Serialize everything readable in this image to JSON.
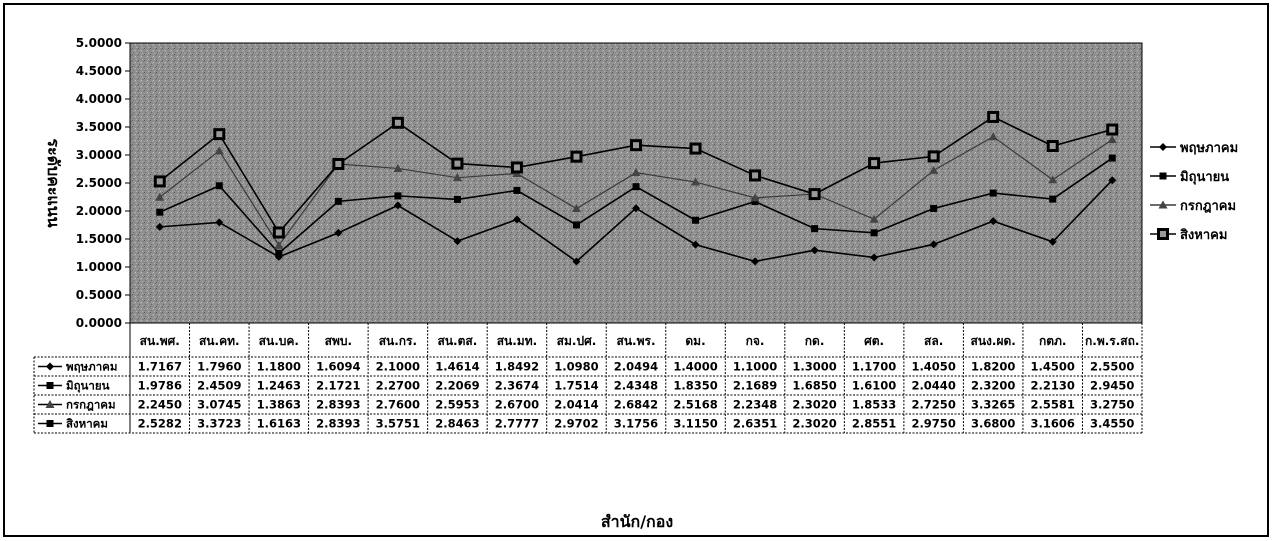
{
  "chart_data": {
    "type": "line",
    "title": "",
    "ylabel": "ระดับคะแนน",
    "xlabel": "สำนัก/กอง",
    "ylim": [
      0,
      5
    ],
    "ytick_step": 0.5,
    "ytick_labels": [
      "0.0000",
      "0.5000",
      "1.0000",
      "1.5000",
      "2.0000",
      "2.5000",
      "3.0000",
      "3.5000",
      "4.0000",
      "4.5000",
      "5.0000"
    ],
    "grid": false,
    "legend_position": "right",
    "categories": [
      "สน.พศ.",
      "สน.คท.",
      "สน.บค.",
      "สพบ.",
      "สน.กร.",
      "สน.ตส.",
      "สน.มท.",
      "สม.ปศ.",
      "สน.พร.",
      "ดม.",
      "กจ.",
      "กด.",
      "ศต.",
      "สล.",
      "สนง.ผด.",
      "กตภ.",
      "ก.พ.ร.สถ."
    ],
    "value_labels": {
      "may": [
        "1.7167",
        "1.7960",
        "1.1800",
        "1.6094",
        "2.1000",
        "1.4614",
        "1.8492",
        "1.0980",
        "2.0494",
        "1.4000",
        "1.1000",
        "1.3000",
        "1.1700",
        "1.4050",
        "1.8200",
        "1.4500",
        "2.5500"
      ],
      "jun": [
        "1.9786",
        "2.4509",
        "1.2463",
        "2.1721",
        "2.2700",
        "2.2069",
        "2.3674",
        "1.7514",
        "2.4348",
        "1.8350",
        "2.1689",
        "1.6850",
        "1.6100",
        "2.0440",
        "2.3200",
        "2.2130",
        "2.9450"
      ],
      "jul": [
        "2.2450",
        "3.0745",
        "1.3863",
        "2.8393",
        "2.7600",
        "2.5953",
        "2.6700",
        "2.0414",
        "2.6842",
        "2.5168",
        "2.2348",
        "2.3020",
        "1.8533",
        "2.7250",
        "3.3265",
        "2.5581",
        "3.2750"
      ],
      "aug": [
        "2.5282",
        "3.3723",
        "1.6163",
        "2.8393",
        "3.5751",
        "2.8463",
        "2.7777",
        "2.9702",
        "3.1756",
        "3.1150",
        "2.6351",
        "2.3020",
        "2.8551",
        "2.9750",
        "3.6800",
        "3.1606",
        "3.4550"
      ]
    },
    "series": [
      {
        "key": "may",
        "name": "พฤษภาคม",
        "marker": "diamond",
        "values": [
          1.7167,
          1.796,
          1.18,
          1.6094,
          2.1,
          1.4614,
          1.8492,
          1.098,
          2.0494,
          1.4,
          1.1,
          1.3,
          1.17,
          1.405,
          1.82,
          1.45,
          2.55
        ]
      },
      {
        "key": "jun",
        "name": "มิถุนายน",
        "marker": "square",
        "values": [
          1.9786,
          2.4509,
          1.2463,
          2.1721,
          2.27,
          2.2069,
          2.3674,
          1.7514,
          2.4348,
          1.835,
          2.1689,
          1.685,
          1.61,
          2.044,
          2.32,
          2.213,
          2.945
        ]
      },
      {
        "key": "jul",
        "name": "กรกฎาคม",
        "marker": "triangle",
        "values": [
          2.245,
          3.0745,
          1.3863,
          2.8393,
          2.76,
          2.5953,
          2.67,
          2.0414,
          2.6842,
          2.5168,
          2.2348,
          2.302,
          1.8533,
          2.725,
          3.3265,
          2.5581,
          3.275
        ]
      },
      {
        "key": "aug",
        "name": "สิงหาคม",
        "marker": "bigsquare",
        "values": [
          2.5282,
          3.3723,
          1.6163,
          2.8393,
          3.5751,
          2.8463,
          2.7777,
          2.9702,
          3.1756,
          3.115,
          2.6351,
          2.302,
          2.8551,
          2.975,
          3.68,
          3.1606,
          3.455
        ]
      }
    ],
    "colors": {
      "plot_background": "#8f8f8f",
      "series_line": "#000000",
      "jul_line": "#3a3a3a",
      "table_border": "#000000"
    }
  }
}
